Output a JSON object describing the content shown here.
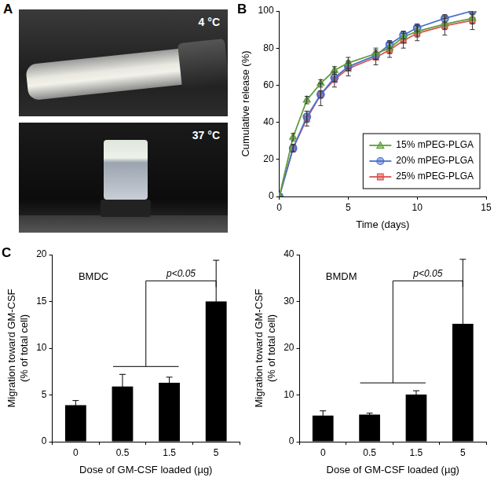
{
  "photos": {
    "panel": "A",
    "labels": [
      "4 °C",
      "37 °C"
    ]
  },
  "chart_data": [
    {
      "panel": "B",
      "type": "line",
      "x_label": "Time (days)",
      "y_label": "Cumulative release (%)",
      "x": [
        0,
        1,
        2,
        3,
        4,
        5,
        7,
        8,
        9,
        10,
        12,
        14
      ],
      "xlim": [
        0,
        15
      ],
      "xticks": [
        0,
        5,
        10,
        15
      ],
      "ylim": [
        0,
        100
      ],
      "yticks": [
        0,
        20,
        40,
        60,
        80,
        100
      ],
      "grid": false,
      "legend": "lower right",
      "series": [
        {
          "name": "15% mPEG-PLGA",
          "color": "#5f9e3a",
          "marker": "triangle",
          "values": [
            0,
            32,
            52,
            61,
            68,
            72,
            77,
            80,
            86,
            89,
            93,
            96
          ],
          "errors": [
            0,
            2,
            2,
            2,
            2,
            3,
            3,
            3,
            3,
            3,
            3,
            3
          ]
        },
        {
          "name": "20% mPEG-PLGA",
          "color": "#4a6fd0",
          "marker": "circle",
          "values": [
            0,
            26,
            43,
            55,
            64,
            70,
            76,
            82,
            87,
            91,
            96,
            100
          ],
          "errors": [
            0,
            2,
            3,
            2,
            2,
            2,
            2,
            2,
            2,
            2,
            2,
            2
          ]
        },
        {
          "name": "25% mPEG-PLGA",
          "color": "#d9534f",
          "marker": "square",
          "values": [
            0,
            26,
            42,
            55,
            63,
            69,
            75,
            79,
            84,
            88,
            92,
            95
          ],
          "errors": [
            0,
            2,
            4,
            6,
            4,
            4,
            4,
            4,
            4,
            4,
            5,
            5
          ]
        }
      ]
    },
    {
      "panel": "C",
      "type": "bar",
      "title": "BMDC",
      "x_label": "Dose of GM-CSF loaded (µg)",
      "y_label": [
        "Migration toward GM-CSF",
        "(% of total cell)"
      ],
      "categories": [
        "0",
        "0.5",
        "1.5",
        "5"
      ],
      "values": [
        3.9,
        5.9,
        6.3,
        15.0
      ],
      "errors": [
        0.5,
        1.3,
        0.6,
        4.4
      ],
      "color": "#000000",
      "ylim": [
        0,
        20
      ],
      "yticks": [
        0,
        5,
        10,
        15,
        20
      ],
      "grid": false,
      "annotations": [
        {
          "text": "p<0.05",
          "from": [
            "0.5",
            "1.5"
          ],
          "to": "5"
        }
      ]
    },
    {
      "type": "bar",
      "title": "BMDM",
      "x_label": "Dose of GM-CSF loaded (µg)",
      "y_label": [
        "Migration toward GM-CSF",
        "(% of total cell)"
      ],
      "categories": [
        "0",
        "0.5",
        "1.5",
        "5"
      ],
      "values": [
        5.6,
        5.8,
        10.1,
        25.2
      ],
      "errors": [
        1.0,
        0.3,
        0.8,
        13.8
      ],
      "color": "#000000",
      "ylim": [
        0,
        40
      ],
      "yticks": [
        0,
        10,
        20,
        30,
        40
      ],
      "grid": false,
      "annotations": [
        {
          "text": "p<0.05",
          "from": [
            "0.5",
            "1.5"
          ],
          "to": "5"
        }
      ]
    }
  ]
}
